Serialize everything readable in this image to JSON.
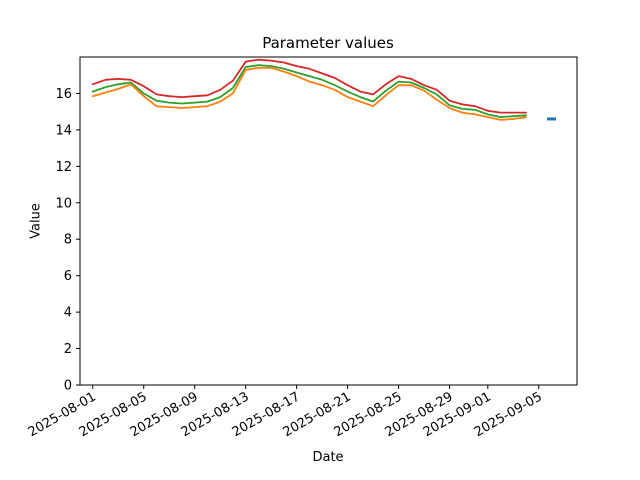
{
  "figure": {
    "title": "Parameter values",
    "xlabel": "Date",
    "ylabel": "Value",
    "background_color": "#ffffff",
    "axes_color": "#000000"
  },
  "chart_data": {
    "type": "line",
    "title": "Parameter values",
    "xlabel": "Date",
    "ylabel": "Value",
    "grid": false,
    "legend": "none",
    "ylim": [
      0,
      18
    ],
    "xlim": [
      "2025-07-31",
      "2025-09-08"
    ],
    "y_ticks": [
      0,
      2,
      4,
      6,
      8,
      10,
      12,
      14,
      16
    ],
    "x_ticks": [
      "2025-08-01",
      "2025-08-05",
      "2025-08-09",
      "2025-08-13",
      "2025-08-17",
      "2025-08-21",
      "2025-08-25",
      "2025-08-29",
      "2025-09-01",
      "2025-09-05"
    ],
    "x": [
      "2025-08-01",
      "2025-08-02",
      "2025-08-03",
      "2025-08-04",
      "2025-08-05",
      "2025-08-06",
      "2025-08-07",
      "2025-08-08",
      "2025-08-09",
      "2025-08-10",
      "2025-08-11",
      "2025-08-12",
      "2025-08-13",
      "2025-08-14",
      "2025-08-15",
      "2025-08-16",
      "2025-08-17",
      "2025-08-18",
      "2025-08-19",
      "2025-08-20",
      "2025-08-21",
      "2025-08-22",
      "2025-08-23",
      "2025-08-24",
      "2025-08-25",
      "2025-08-26",
      "2025-08-27",
      "2025-08-28",
      "2025-08-29",
      "2025-08-30",
      "2025-08-31",
      "2025-09-01",
      "2025-09-02",
      "2025-09-03",
      "2025-09-04"
    ],
    "series": [
      {
        "name": "red-series",
        "color": "#d62728",
        "values": [
          16.5,
          16.75,
          16.8,
          16.75,
          16.4,
          15.95,
          15.85,
          15.8,
          15.85,
          15.9,
          16.2,
          16.7,
          17.75,
          17.85,
          17.8,
          17.7,
          17.5,
          17.35,
          17.1,
          16.85,
          16.45,
          16.1,
          15.95,
          16.5,
          16.95,
          16.8,
          16.45,
          16.2,
          15.6,
          15.4,
          15.3,
          15.05,
          14.95,
          14.95,
          14.95
        ]
      },
      {
        "name": "green-series",
        "color": "#2ca02c",
        "values": [
          16.1,
          16.35,
          16.5,
          16.6,
          16.0,
          15.6,
          15.5,
          15.45,
          15.5,
          15.55,
          15.8,
          16.3,
          17.45,
          17.55,
          17.5,
          17.35,
          17.15,
          16.95,
          16.75,
          16.45,
          16.1,
          15.8,
          15.55,
          16.15,
          16.65,
          16.6,
          16.3,
          15.95,
          15.35,
          15.15,
          15.1,
          14.85,
          14.7,
          14.75,
          14.8
        ]
      },
      {
        "name": "orange-series",
        "color": "#ff7f0e",
        "values": [
          15.85,
          16.05,
          16.25,
          16.5,
          15.85,
          15.3,
          15.25,
          15.2,
          15.25,
          15.3,
          15.55,
          16.0,
          17.3,
          17.4,
          17.4,
          17.2,
          16.95,
          16.65,
          16.45,
          16.2,
          15.8,
          15.55,
          15.3,
          15.9,
          16.45,
          16.45,
          16.15,
          15.65,
          15.2,
          14.95,
          14.85,
          14.7,
          14.55,
          14.6,
          14.7
        ]
      },
      {
        "name": "blue-isolated-point",
        "color": "#1f77b4",
        "marker": "hline-dash",
        "x": [
          "2025-09-06"
        ],
        "values": [
          14.6
        ]
      }
    ]
  }
}
